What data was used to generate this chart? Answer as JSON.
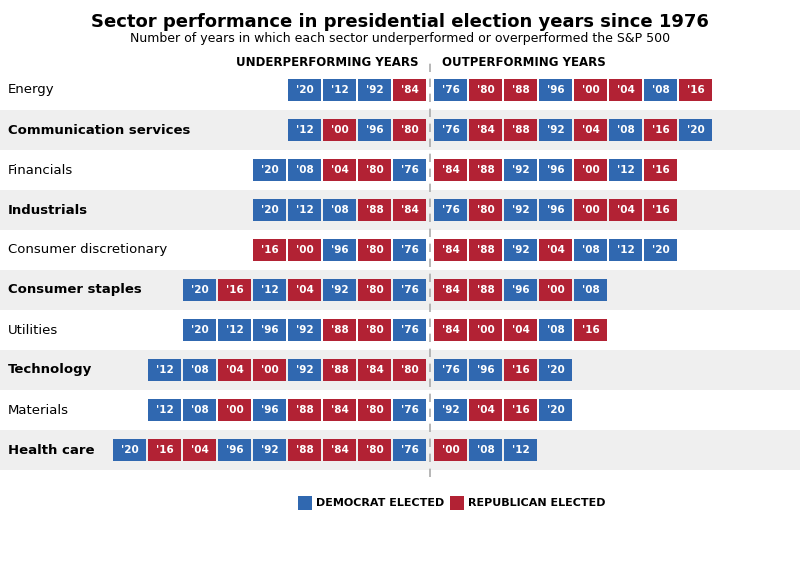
{
  "title": "Sector performance in presidential election years since 1976",
  "subtitle": "Number of years in which each sector underperformed or overperformed the S&P 500",
  "dem_color": "#3068B0",
  "rep_color": "#B22234",
  "bg_color": "#FFFFFF",
  "row_alt_color": "#F0F0F0",
  "sectors": [
    "Energy",
    "Communication services",
    "Financials",
    "Industrials",
    "Consumer discretionary",
    "Consumer staples",
    "Utilities",
    "Technology",
    "Materials",
    "Health care"
  ],
  "bold_sectors": [
    1,
    3,
    5,
    7,
    9
  ],
  "under": [
    [
      [
        "'20",
        "D"
      ],
      [
        "'12",
        "D"
      ],
      [
        "'92",
        "D"
      ],
      [
        "'84",
        "R"
      ]
    ],
    [
      [
        "'12",
        "D"
      ],
      [
        "'00",
        "R"
      ],
      [
        "'96",
        "D"
      ],
      [
        "'80",
        "R"
      ]
    ],
    [
      [
        "'20",
        "D"
      ],
      [
        "'08",
        "D"
      ],
      [
        "'04",
        "R"
      ],
      [
        "'80",
        "R"
      ],
      [
        "'76",
        "D"
      ]
    ],
    [
      [
        "'20",
        "D"
      ],
      [
        "'12",
        "D"
      ],
      [
        "'08",
        "D"
      ],
      [
        "'88",
        "R"
      ],
      [
        "'84",
        "R"
      ]
    ],
    [
      [
        "'16",
        "R"
      ],
      [
        "'00",
        "R"
      ],
      [
        "'96",
        "D"
      ],
      [
        "'80",
        "R"
      ],
      [
        "'76",
        "D"
      ]
    ],
    [
      [
        "'20",
        "D"
      ],
      [
        "'16",
        "R"
      ],
      [
        "'12",
        "D"
      ],
      [
        "'04",
        "R"
      ],
      [
        "'92",
        "D"
      ],
      [
        "'80",
        "R"
      ],
      [
        "'76",
        "D"
      ]
    ],
    [
      [
        "'20",
        "D"
      ],
      [
        "'12",
        "D"
      ],
      [
        "'96",
        "D"
      ],
      [
        "'92",
        "D"
      ],
      [
        "'88",
        "R"
      ],
      [
        "'80",
        "R"
      ],
      [
        "'76",
        "D"
      ]
    ],
    [
      [
        "'12",
        "D"
      ],
      [
        "'08",
        "D"
      ],
      [
        "'04",
        "R"
      ],
      [
        "'00",
        "R"
      ],
      [
        "'92",
        "D"
      ],
      [
        "'88",
        "R"
      ],
      [
        "'84",
        "R"
      ],
      [
        "'80",
        "R"
      ]
    ],
    [
      [
        "'12",
        "D"
      ],
      [
        "'08",
        "D"
      ],
      [
        "'00",
        "R"
      ],
      [
        "'96",
        "D"
      ],
      [
        "'88",
        "R"
      ],
      [
        "'84",
        "R"
      ],
      [
        "'80",
        "R"
      ],
      [
        "'76",
        "D"
      ]
    ],
    [
      [
        "'20",
        "D"
      ],
      [
        "'16",
        "R"
      ],
      [
        "'04",
        "R"
      ],
      [
        "'96",
        "D"
      ],
      [
        "'92",
        "D"
      ],
      [
        "'88",
        "R"
      ],
      [
        "'84",
        "R"
      ],
      [
        "'80",
        "R"
      ],
      [
        "'76",
        "D"
      ]
    ]
  ],
  "over": [
    [
      [
        "'76",
        "D"
      ],
      [
        "'80",
        "R"
      ],
      [
        "'88",
        "R"
      ],
      [
        "'96",
        "D"
      ],
      [
        "'00",
        "R"
      ],
      [
        "'04",
        "R"
      ],
      [
        "'08",
        "D"
      ],
      [
        "'16",
        "R"
      ]
    ],
    [
      [
        "'76",
        "D"
      ],
      [
        "'84",
        "R"
      ],
      [
        "'88",
        "R"
      ],
      [
        "'92",
        "D"
      ],
      [
        "'04",
        "R"
      ],
      [
        "'08",
        "D"
      ],
      [
        "'16",
        "R"
      ],
      [
        "'20",
        "D"
      ]
    ],
    [
      [
        "'84",
        "R"
      ],
      [
        "'88",
        "R"
      ],
      [
        "'92",
        "D"
      ],
      [
        "'96",
        "D"
      ],
      [
        "'00",
        "R"
      ],
      [
        "'12",
        "D"
      ],
      [
        "'16",
        "R"
      ]
    ],
    [
      [
        "'76",
        "D"
      ],
      [
        "'80",
        "R"
      ],
      [
        "'92",
        "D"
      ],
      [
        "'96",
        "D"
      ],
      [
        "'00",
        "R"
      ],
      [
        "'04",
        "R"
      ],
      [
        "'16",
        "R"
      ]
    ],
    [
      [
        "'84",
        "R"
      ],
      [
        "'88",
        "R"
      ],
      [
        "'92",
        "D"
      ],
      [
        "'04",
        "R"
      ],
      [
        "'08",
        "D"
      ],
      [
        "'12",
        "D"
      ],
      [
        "'20",
        "D"
      ]
    ],
    [
      [
        "'84",
        "R"
      ],
      [
        "'88",
        "R"
      ],
      [
        "'96",
        "D"
      ],
      [
        "'00",
        "R"
      ],
      [
        "'08",
        "D"
      ]
    ],
    [
      [
        "'84",
        "R"
      ],
      [
        "'00",
        "R"
      ],
      [
        "'04",
        "R"
      ],
      [
        "'08",
        "D"
      ],
      [
        "'16",
        "R"
      ]
    ],
    [
      [
        "'76",
        "D"
      ],
      [
        "'96",
        "D"
      ],
      [
        "'16",
        "R"
      ],
      [
        "'20",
        "D"
      ]
    ],
    [
      [
        "'92",
        "D"
      ],
      [
        "'04",
        "R"
      ],
      [
        "'16",
        "R"
      ],
      [
        "'20",
        "D"
      ]
    ],
    [
      [
        "'00",
        "R"
      ],
      [
        "'08",
        "D"
      ],
      [
        "'12",
        "D"
      ]
    ]
  ]
}
